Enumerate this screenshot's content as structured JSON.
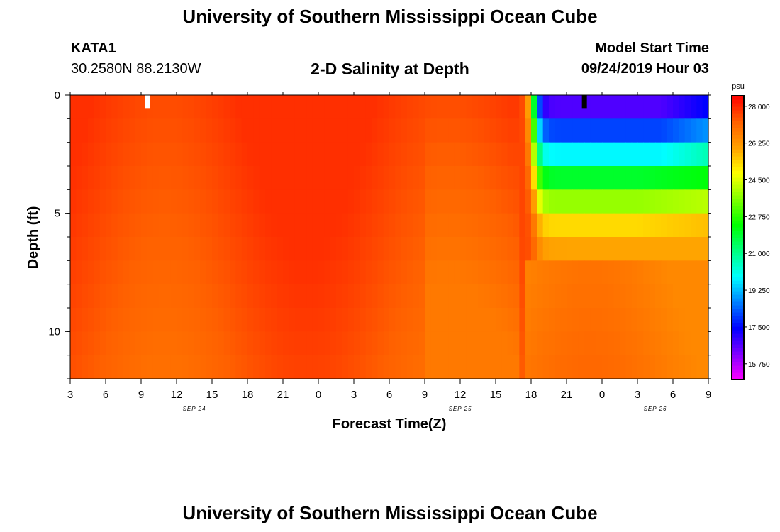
{
  "header": {
    "title": "University of Southern Mississippi Ocean Cube",
    "station": "KATA1",
    "coords": "30.2580N 88.2130W",
    "subtitle": "2-D Salinity at Depth",
    "model_start_label": "Model Start Time",
    "model_start_value": "09/24/2019 Hour 03"
  },
  "footer": {
    "title": "University of Southern Mississippi Ocean Cube"
  },
  "chart_data": {
    "type": "heatmap",
    "title": "2-D Salinity at Depth",
    "xlabel": "Forecast Time(Z)",
    "ylabel": "Depth (ft)",
    "x_range_hours": [
      0,
      54
    ],
    "y_range": [
      0,
      12
    ],
    "x_ticks": [
      {
        "hour": 0,
        "label": "3"
      },
      {
        "hour": 3,
        "label": "6"
      },
      {
        "hour": 6,
        "label": "9"
      },
      {
        "hour": 9,
        "label": "12"
      },
      {
        "hour": 12,
        "label": "15"
      },
      {
        "hour": 15,
        "label": "18"
      },
      {
        "hour": 18,
        "label": "21"
      },
      {
        "hour": 21,
        "label": "0"
      },
      {
        "hour": 24,
        "label": "3"
      },
      {
        "hour": 27,
        "label": "6"
      },
      {
        "hour": 30,
        "label": "9"
      },
      {
        "hour": 33,
        "label": "12"
      },
      {
        "hour": 36,
        "label": "15"
      },
      {
        "hour": 39,
        "label": "18"
      },
      {
        "hour": 42,
        "label": "21"
      },
      {
        "hour": 45,
        "label": "0"
      },
      {
        "hour": 48,
        "label": "3"
      },
      {
        "hour": 51,
        "label": "6"
      },
      {
        "hour": 54,
        "label": "9"
      }
    ],
    "date_labels": [
      {
        "hour": 10.5,
        "label": "SEP 24"
      },
      {
        "hour": 33,
        "label": "SEP 25"
      },
      {
        "hour": 49.5,
        "label": "SEP 26"
      }
    ],
    "y_ticks": [
      {
        "value": 0,
        "label": "0"
      },
      {
        "value": 5,
        "label": "5"
      },
      {
        "value": 10,
        "label": "10"
      }
    ],
    "y_minor_step": 1,
    "colorbar": {
      "unit": "psu",
      "min": 15.0,
      "max": 28.5,
      "labels": [
        "28.000",
        "26.250",
        "24.500",
        "22.750",
        "21.000",
        "19.250",
        "17.500",
        "15.750"
      ],
      "colors": [
        "#ff00ff",
        "#8000ff",
        "#0000ff",
        "#0080ff",
        "#00ffff",
        "#00ff80",
        "#00ff00",
        "#80ff00",
        "#ffff00",
        "#ffa000",
        "#ff6000",
        "#ff0000"
      ]
    },
    "depths": [
      0,
      1,
      2,
      3,
      4,
      5,
      6,
      7,
      8,
      9,
      10,
      11,
      12
    ],
    "model": {
      "background_range": [
        26.8,
        27.9
      ],
      "front_hour_surface": 39.2,
      "front_hour_6ft": 39.4,
      "front_depth_ft": 6.5,
      "surface_profile": [
        {
          "depth": 0,
          "value": 16.0
        },
        {
          "depth": 1,
          "value": 17.4
        },
        {
          "depth": 2,
          "value": 18.8
        },
        {
          "depth": 3,
          "value": 20.9
        },
        {
          "depth": 4,
          "value": 23.0
        },
        {
          "depth": 5,
          "value": 24.6
        },
        {
          "depth": 6,
          "value": 26.0
        }
      ]
    }
  }
}
